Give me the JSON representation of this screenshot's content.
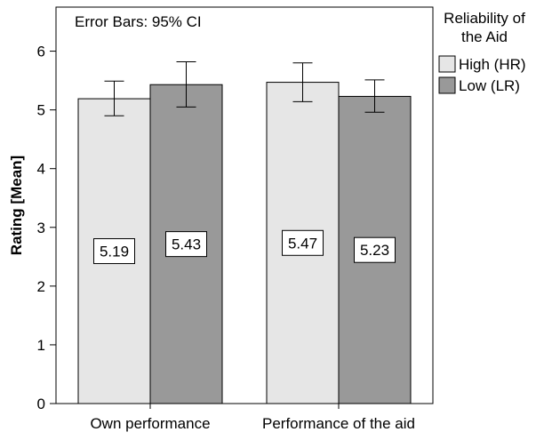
{
  "chart_data": {
    "type": "bar",
    "annotation": "Error Bars: 95% CI",
    "xlabel": "",
    "ylabel": "Rating [Mean]",
    "ylim": [
      0,
      6.75
    ],
    "yticks": [
      0,
      1,
      2,
      3,
      4,
      5,
      6
    ],
    "grid": false,
    "legend_position": "right",
    "legend_title": "Reliability of the Aid",
    "categories": [
      "Own performance",
      "Performance of the aid"
    ],
    "series": [
      {
        "name": "High (HR)",
        "color": "#e6e6e6",
        "values": [
          5.19,
          5.47
        ],
        "ci_low": [
          4.9,
          5.14
        ],
        "ci_high": [
          5.49,
          5.8
        ],
        "labels": [
          "5.19",
          "5.47"
        ]
      },
      {
        "name": "Low (LR)",
        "color": "#999999",
        "values": [
          5.43,
          5.23
        ],
        "ci_low": [
          5.05,
          4.96
        ],
        "ci_high": [
          5.82,
          5.51
        ],
        "labels": [
          "5.43",
          "5.23"
        ]
      }
    ]
  }
}
